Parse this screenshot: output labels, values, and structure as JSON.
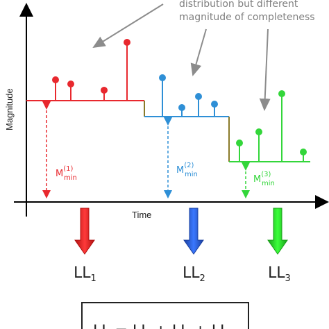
{
  "annotation": {
    "line1": "distribution but different",
    "line2": "magnitude of completeness"
  },
  "axes": {
    "ylabel": "Magnitude",
    "xlabel": "Time"
  },
  "periods": [
    {
      "m_label": "M",
      "m_sup": "(1)",
      "m_sub": "min",
      "ll_main": "LL",
      "ll_sub": "1",
      "color": "#e8282e"
    },
    {
      "m_label": "M",
      "m_sup": "(2)",
      "m_sub": "min",
      "ll_main": "LL",
      "ll_sub": "2",
      "color": "#2e8fd6"
    },
    {
      "m_label": "M",
      "m_sup": "(3)",
      "m_sub": "min",
      "ll_main": "LL",
      "ll_sub": "3",
      "color": "#33d63a"
    }
  ],
  "formula_box": {
    "text": "LL = LL + LL + LL"
  },
  "colors": {
    "axis": "#000000",
    "annotation_arrow": "#8c8c8c",
    "step_join": "#8a7a2a"
  }
}
